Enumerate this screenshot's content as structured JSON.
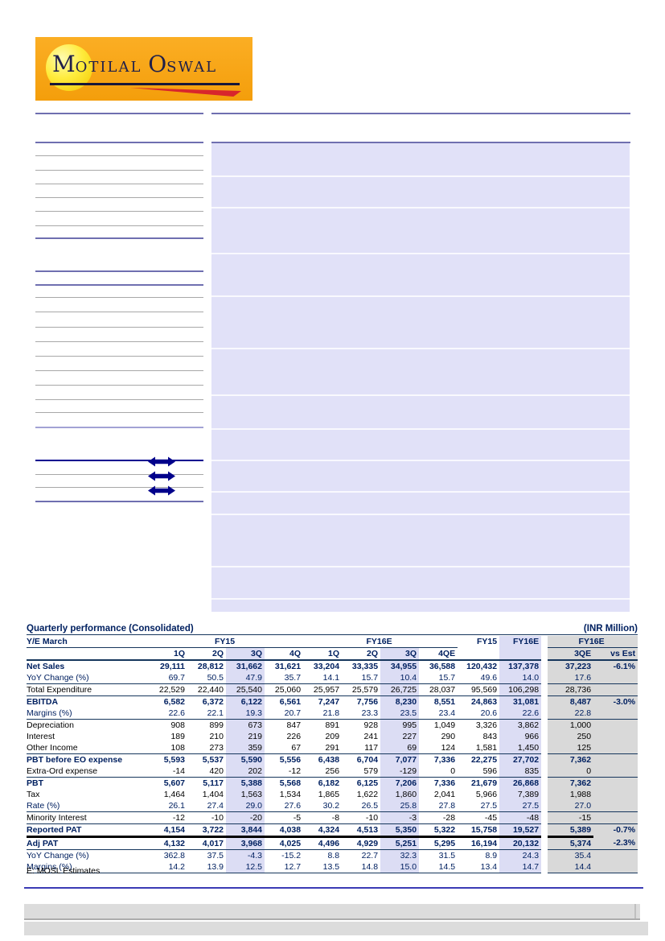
{
  "logo": {
    "brand": "Motilal Oswal",
    "word1_initial": "M",
    "word1_rest": "OTILAL",
    "word2_initial": "O",
    "word2_rest": "SWAL"
  },
  "table": {
    "title": "Quarterly performance (Consolidated)",
    "unit_label": "(INR Million)",
    "head": {
      "col0": "Y/E March",
      "fy15_group": "FY15",
      "fy16e_group": "FY16E",
      "fy15_annual": "FY15",
      "fy16e_annual": "FY16E",
      "fy16e_est_group": "FY16E"
    },
    "sub_headers": [
      "1Q",
      "2Q",
      "3Q",
      "4Q",
      "1Q",
      "2Q",
      "3Q",
      "4QE",
      "3QE",
      "vs Est"
    ],
    "rows": [
      {
        "label": "Net Sales",
        "style": "bold",
        "rule": "none",
        "values": [
          "29,111",
          "28,812",
          "31,662",
          "31,621",
          "33,204",
          "33,335",
          "34,955",
          "36,588",
          "120,432",
          "137,378",
          "37,223"
        ],
        "vs_est": "-6.1%"
      },
      {
        "label": "YoY Change (%)",
        "style": "pct",
        "rule": "none",
        "values": [
          "69.7",
          "50.5",
          "47.9",
          "35.7",
          "14.1",
          "15.7",
          "10.4",
          "15.7",
          "49.6",
          "14.0",
          "17.6"
        ],
        "vs_est": ""
      },
      {
        "label": "Total Expenditure",
        "style": "plain",
        "rule": "navy",
        "values": [
          "22,529",
          "22,440",
          "25,540",
          "25,060",
          "25,957",
          "25,579",
          "26,725",
          "28,037",
          "95,569",
          "106,298",
          "28,736"
        ],
        "vs_est": ""
      },
      {
        "label": "EBITDA",
        "style": "bold",
        "rule": "navy",
        "values": [
          "6,582",
          "6,372",
          "6,122",
          "6,561",
          "7,247",
          "7,756",
          "8,230",
          "8,551",
          "24,863",
          "31,081",
          "8,487"
        ],
        "vs_est": "-3.0%"
      },
      {
        "label": "Margins (%)",
        "style": "pct",
        "rule": "none",
        "values": [
          "22.6",
          "22.1",
          "19.3",
          "20.7",
          "21.8",
          "23.3",
          "23.5",
          "23.4",
          "20.6",
          "22.6",
          "22.8"
        ],
        "vs_est": ""
      },
      {
        "label": "Depreciation",
        "style": "plain",
        "rule": "navy",
        "values": [
          "908",
          "899",
          "673",
          "847",
          "891",
          "928",
          "995",
          "1,049",
          "3,326",
          "3,862",
          "1,000"
        ],
        "vs_est": ""
      },
      {
        "label": "Interest",
        "style": "plain",
        "rule": "none",
        "values": [
          "189",
          "210",
          "219",
          "226",
          "209",
          "241",
          "227",
          "290",
          "843",
          "966",
          "250"
        ],
        "vs_est": ""
      },
      {
        "label": "Other Income",
        "style": "plain",
        "rule": "none",
        "values": [
          "108",
          "273",
          "359",
          "67",
          "291",
          "117",
          "69",
          "124",
          "1,581",
          "1,450",
          "125"
        ],
        "vs_est": ""
      },
      {
        "label": "PBT before EO expense",
        "style": "bold",
        "rule": "navy",
        "values": [
          "5,593",
          "5,537",
          "5,590",
          "5,556",
          "6,438",
          "6,704",
          "7,077",
          "7,336",
          "22,275",
          "27,702",
          "7,362"
        ],
        "vs_est": ""
      },
      {
        "label": "Extra-Ord expense",
        "style": "plain",
        "rule": "none",
        "values": [
          "-14",
          "420",
          "202",
          "-12",
          "256",
          "579",
          "-129",
          "0",
          "596",
          "835",
          "0"
        ],
        "vs_est": ""
      },
      {
        "label": "PBT",
        "style": "bold",
        "rule": "navy",
        "values": [
          "5,607",
          "5,117",
          "5,388",
          "5,568",
          "6,182",
          "6,125",
          "7,206",
          "7,336",
          "21,679",
          "26,868",
          "7,362"
        ],
        "vs_est": ""
      },
      {
        "label": "Tax",
        "style": "plain",
        "rule": "none",
        "values": [
          "1,464",
          "1,404",
          "1,563",
          "1,534",
          "1,865",
          "1,622",
          "1,860",
          "2,041",
          "5,966",
          "7,389",
          "1,988"
        ],
        "vs_est": ""
      },
      {
        "label": "Rate (%)",
        "style": "pct",
        "rule": "none",
        "values": [
          "26.1",
          "27.4",
          "29.0",
          "27.6",
          "30.2",
          "26.5",
          "25.8",
          "27.8",
          "27.5",
          "27.5",
          "27.0"
        ],
        "vs_est": ""
      },
      {
        "label": "Minority Interest",
        "style": "plain",
        "rule": "navy",
        "values": [
          "-12",
          "-10",
          "-20",
          "-5",
          "-8",
          "-10",
          "-3",
          "-28",
          "-45",
          "-48",
          "-15"
        ],
        "vs_est": ""
      },
      {
        "label": "Reported PAT",
        "style": "bold",
        "rule": "navy",
        "values": [
          "4,154",
          "3,722",
          "3,844",
          "4,038",
          "4,324",
          "4,513",
          "5,350",
          "5,322",
          "15,758",
          "19,527",
          "5,389"
        ],
        "vs_est": "-0.7%"
      },
      {
        "label": "Adj PAT",
        "style": "bold",
        "rule": "black",
        "values": [
          "4,132",
          "4,017",
          "3,968",
          "4,025",
          "4,496",
          "4,929",
          "5,251",
          "5,295",
          "16,194",
          "20,132",
          "5,374"
        ],
        "vs_est": "-2.3%"
      },
      {
        "label": "YoY Change (%)",
        "style": "pct",
        "rule": "navy",
        "values": [
          "362.8",
          "37.5",
          "-4.3",
          "-15.2",
          "8.8",
          "22.7",
          "32.3",
          "31.5",
          "8.9",
          "24.3",
          "35.4"
        ],
        "vs_est": ""
      },
      {
        "label": "Margins (%)",
        "style": "pct",
        "rule": "none",
        "values": [
          "14.2",
          "13.9",
          "12.5",
          "12.7",
          "13.5",
          "14.8",
          "15.0",
          "14.5",
          "13.4",
          "14.7",
          "14.4"
        ],
        "vs_est": ""
      }
    ],
    "footnote": "E: MOSL Estimates"
  }
}
